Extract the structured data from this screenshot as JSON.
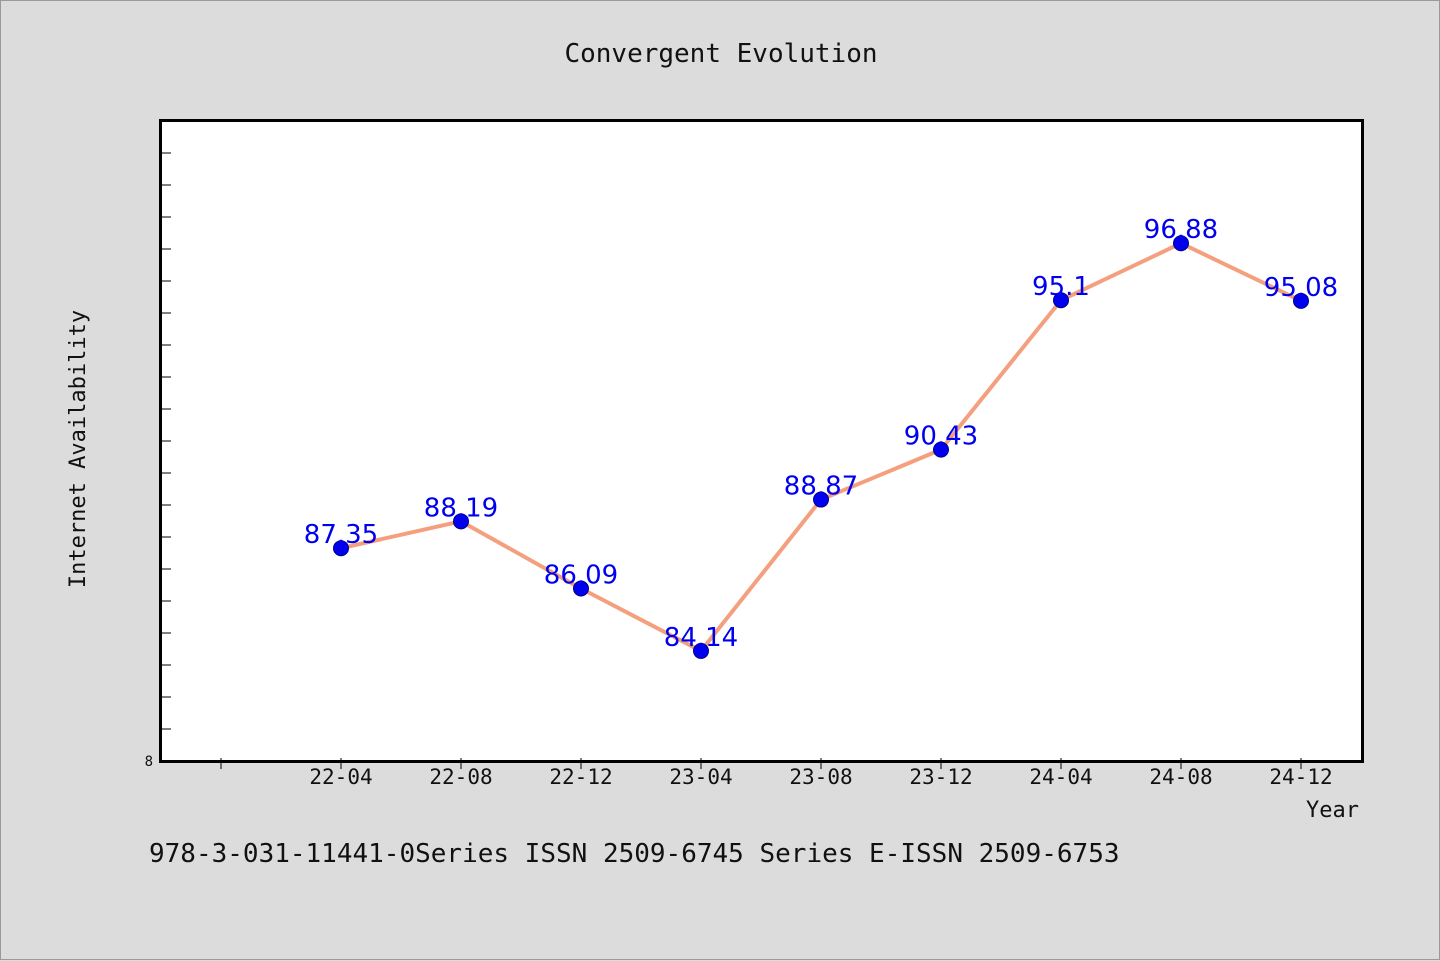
{
  "chart_data": {
    "type": "line",
    "title": "Convergent Evolution",
    "xlabel": "Year",
    "ylabel": "Internet Availability",
    "categories": [
      "22-04",
      "22-08",
      "22-12",
      "23-04",
      "23-08",
      "23-12",
      "24-04",
      "24-08",
      "24-12"
    ],
    "series": [
      {
        "values": [
          87.35,
          88.19,
          86.09,
          84.14,
          88.87,
          90.43,
          95.1,
          96.88,
          95.08
        ],
        "line_color": "#f4a07e",
        "marker_color": "#0000ee",
        "label_color": "#0000ee"
      }
    ],
    "data_labels": [
      "87.35",
      "88.19",
      "86.09",
      "84.14",
      "88.87",
      "90.43",
      "95.1",
      "96.88",
      "95.08"
    ],
    "y_tick_labels": [
      "8"
    ],
    "ylim": [
      80.7,
      100.7
    ],
    "grid": false,
    "legend": "none"
  },
  "footer": "978-3-031-11441-0Series ISSN 2509-6745 Series E-ISSN 2509-6753"
}
